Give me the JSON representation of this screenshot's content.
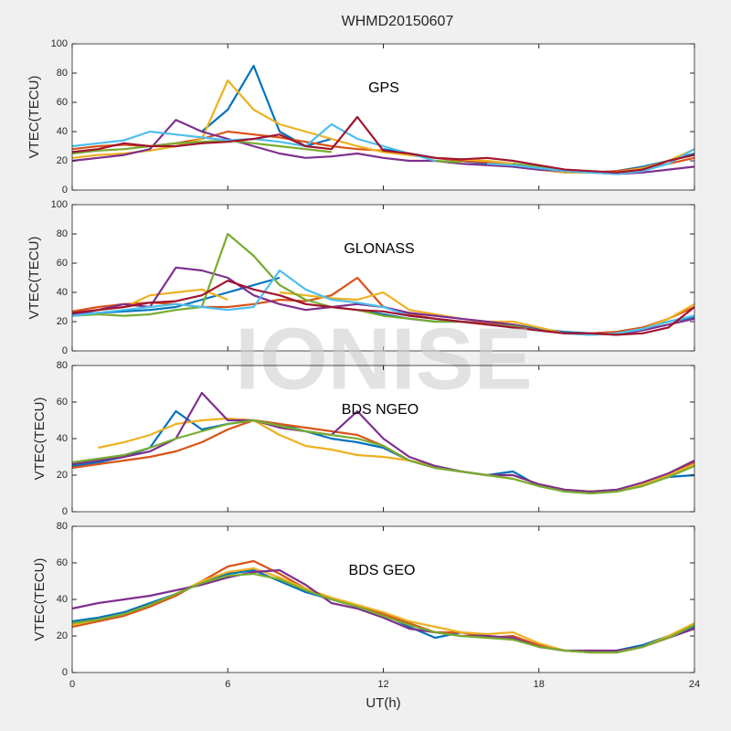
{
  "title": "WHMD20150607",
  "watermark": "IONISE",
  "chart_data": [
    {
      "type": "line",
      "annotation": "GPS",
      "ylabel": "VTEC(TECU)",
      "xlim": [
        0,
        24
      ],
      "xticks": [
        0,
        6,
        12,
        18,
        24
      ],
      "ylim": [
        0,
        100
      ],
      "yticks": [
        0,
        20,
        40,
        60,
        80,
        100
      ],
      "x": [
        0,
        1,
        2,
        3,
        4,
        5,
        6,
        7,
        8,
        9,
        10,
        11,
        12,
        13,
        14,
        15,
        16,
        17,
        18,
        19,
        20,
        21,
        22,
        23,
        24
      ],
      "series": [
        {
          "name": "s1",
          "color": "#0072BD",
          "values": [
            null,
            null,
            null,
            null,
            null,
            40,
            55,
            85,
            40,
            30,
            35,
            null,
            28,
            25,
            22,
            20,
            18,
            16,
            14,
            12,
            12,
            13,
            16,
            20,
            25
          ]
        },
        {
          "name": "s2",
          "color": "#D95319",
          "values": [
            28,
            30,
            31,
            30,
            32,
            35,
            40,
            38,
            36,
            33,
            30,
            28,
            27,
            24,
            22,
            20,
            19,
            18,
            15,
            13,
            12,
            13,
            15,
            18,
            22
          ]
        },
        {
          "name": "s3",
          "color": "#EDB120",
          "values": [
            22,
            24,
            25,
            27,
            30,
            35,
            75,
            55,
            45,
            40,
            35,
            30,
            26,
            24,
            22,
            21,
            20,
            18,
            14,
            12,
            12,
            12,
            15,
            20,
            28
          ]
        },
        {
          "name": "s4",
          "color": "#7E2F8E",
          "values": [
            20,
            22,
            24,
            28,
            48,
            40,
            35,
            30,
            25,
            22,
            23,
            25,
            22,
            20,
            20,
            18,
            17,
            16,
            14,
            13,
            12,
            11,
            12,
            14,
            16
          ]
        },
        {
          "name": "s5",
          "color": "#77AC30",
          "values": [
            25,
            27,
            28,
            30,
            32,
            33,
            34,
            32,
            30,
            28,
            26,
            null,
            null,
            null,
            20,
            19,
            null,
            18,
            16,
            14,
            null,
            null,
            null,
            null,
            null
          ]
        },
        {
          "name": "s6",
          "color": "#4DBEEE",
          "values": [
            30,
            32,
            34,
            40,
            38,
            36,
            34,
            35,
            33,
            30,
            45,
            35,
            30,
            25,
            20,
            null,
            18,
            17,
            15,
            13,
            12,
            11,
            13,
            18,
            28
          ]
        },
        {
          "name": "s7",
          "color": "#A2142F",
          "values": [
            26,
            28,
            32,
            30,
            30,
            32,
            33,
            35,
            38,
            30,
            28,
            50,
            27,
            25,
            22,
            21,
            22,
            20,
            17,
            14,
            13,
            12,
            14,
            20,
            24
          ]
        }
      ]
    },
    {
      "type": "line",
      "annotation": "GLONASS",
      "ylabel": "VTEC(TECU)",
      "xlim": [
        0,
        24
      ],
      "xticks": [
        0,
        6,
        12,
        18,
        24
      ],
      "ylim": [
        0,
        100
      ],
      "yticks": [
        0,
        20,
        40,
        60,
        80,
        100
      ],
      "x": [
        0,
        1,
        2,
        3,
        4,
        5,
        6,
        7,
        8,
        9,
        10,
        11,
        12,
        13,
        14,
        15,
        16,
        17,
        18,
        19,
        20,
        21,
        22,
        23,
        24
      ],
      "series": [
        {
          "name": "s1",
          "color": "#0072BD",
          "values": [
            25,
            26,
            27,
            28,
            30,
            35,
            40,
            45,
            50,
            null,
            30,
            28,
            25,
            22,
            20,
            20,
            19,
            18,
            15,
            13,
            12,
            13,
            16,
            20,
            23
          ]
        },
        {
          "name": "s2",
          "color": "#D95319",
          "values": [
            27,
            30,
            32,
            33,
            32,
            30,
            30,
            32,
            35,
            34,
            38,
            50,
            30,
            25,
            22,
            20,
            19,
            18,
            14,
            12,
            12,
            13,
            16,
            22,
            30
          ]
        },
        {
          "name": "s3",
          "color": "#EDB120",
          "values": [
            26,
            28,
            30,
            38,
            40,
            42,
            35,
            null,
            40,
            38,
            36,
            35,
            40,
            28,
            25,
            22,
            20,
            20,
            16,
            12,
            11,
            12,
            15,
            22,
            32
          ]
        },
        {
          "name": "s4",
          "color": "#7E2F8E",
          "values": [
            25,
            28,
            32,
            30,
            57,
            55,
            50,
            38,
            32,
            28,
            30,
            32,
            30,
            26,
            24,
            22,
            20,
            18,
            14,
            12,
            12,
            11,
            14,
            18,
            22
          ]
        },
        {
          "name": "s5",
          "color": "#77AC30",
          "values": [
            24,
            25,
            24,
            25,
            28,
            30,
            80,
            65,
            45,
            35,
            30,
            28,
            24,
            22,
            20,
            20,
            18,
            17,
            14,
            12,
            11,
            12,
            15,
            20,
            24
          ]
        },
        {
          "name": "s6",
          "color": "#4DBEEE",
          "values": [
            24,
            26,
            28,
            30,
            32,
            30,
            28,
            30,
            55,
            42,
            35,
            33,
            30,
            24,
            22,
            20,
            18,
            16,
            14,
            12,
            11,
            12,
            15,
            20,
            24
          ]
        },
        {
          "name": "s7",
          "color": "#A2142F",
          "values": [
            26,
            28,
            30,
            33,
            34,
            38,
            48,
            42,
            38,
            32,
            30,
            28,
            27,
            24,
            22,
            20,
            18,
            16,
            14,
            12,
            12,
            11,
            12,
            16,
            30
          ]
        }
      ]
    },
    {
      "type": "line",
      "annotation": "BDS NGEO",
      "ylabel": "VTEC(TECU)",
      "xlim": [
        0,
        24
      ],
      "xticks": [
        0,
        6,
        12,
        18,
        24
      ],
      "ylim": [
        0,
        80
      ],
      "yticks": [
        0,
        20,
        40,
        60,
        80
      ],
      "x": [
        0,
        1,
        2,
        3,
        4,
        5,
        6,
        7,
        8,
        9,
        10,
        11,
        12,
        13,
        14,
        15,
        16,
        17,
        18,
        19,
        20,
        21,
        22,
        23,
        24
      ],
      "series": [
        {
          "name": "s1",
          "color": "#0072BD",
          "values": [
            25,
            27,
            30,
            35,
            55,
            45,
            48,
            50,
            48,
            44,
            40,
            38,
            35,
            28,
            24,
            22,
            20,
            22,
            14,
            12,
            11,
            12,
            15,
            19,
            20
          ]
        },
        {
          "name": "s2",
          "color": "#D95319",
          "values": [
            24,
            26,
            28,
            30,
            33,
            38,
            45,
            50,
            48,
            46,
            44,
            42,
            36,
            28,
            24,
            22,
            20,
            20,
            15,
            12,
            11,
            12,
            15,
            20,
            27
          ]
        },
        {
          "name": "s3",
          "color": "#EDB120",
          "values": [
            null,
            35,
            38,
            42,
            48,
            50,
            51,
            50,
            42,
            36,
            34,
            31,
            30,
            28,
            25,
            22,
            20,
            18,
            14,
            12,
            11,
            12,
            15,
            20,
            26
          ]
        },
        {
          "name": "s4",
          "color": "#7E2F8E",
          "values": [
            26,
            28,
            30,
            33,
            40,
            65,
            50,
            50,
            46,
            44,
            42,
            55,
            40,
            30,
            25,
            22,
            20,
            20,
            15,
            12,
            11,
            12,
            16,
            21,
            28
          ]
        },
        {
          "name": "s5",
          "color": "#77AC30",
          "values": [
            27,
            29,
            31,
            35,
            40,
            44,
            48,
            50,
            47,
            44,
            42,
            40,
            36,
            28,
            24,
            22,
            20,
            18,
            14,
            11,
            10,
            11,
            14,
            19,
            25
          ]
        }
      ]
    },
    {
      "type": "line",
      "annotation": "BDS GEO",
      "ylabel": "VTEC(TECU)",
      "xlabel": "UT(h)",
      "xlim": [
        0,
        24
      ],
      "xticks": [
        0,
        6,
        12,
        18,
        24
      ],
      "ylim": [
        0,
        80
      ],
      "yticks": [
        0,
        20,
        40,
        60,
        80
      ],
      "x": [
        0,
        1,
        2,
        3,
        4,
        5,
        6,
        7,
        8,
        9,
        10,
        11,
        12,
        13,
        14,
        15,
        16,
        17,
        18,
        19,
        20,
        21,
        22,
        23,
        24
      ],
      "series": [
        {
          "name": "s1",
          "color": "#0072BD",
          "values": [
            28,
            30,
            33,
            38,
            43,
            49,
            54,
            56,
            50,
            44,
            40,
            36,
            32,
            25,
            19,
            22,
            20,
            18,
            15,
            12,
            11,
            12,
            15,
            20,
            25
          ]
        },
        {
          "name": "s2",
          "color": "#D95319",
          "values": [
            25,
            28,
            31,
            36,
            42,
            50,
            58,
            61,
            54,
            46,
            40,
            36,
            32,
            27,
            22,
            22,
            19,
            20,
            15,
            12,
            11,
            11,
            14,
            19,
            24
          ]
        },
        {
          "name": "s3",
          "color": "#EDB120",
          "values": [
            26,
            29,
            32,
            37,
            43,
            50,
            55,
            57,
            52,
            46,
            41,
            37,
            33,
            28,
            25,
            22,
            21,
            22,
            16,
            12,
            11,
            11,
            14,
            20,
            27
          ]
        },
        {
          "name": "s4",
          "color": "#7E2F8E",
          "values": [
            35,
            38,
            40,
            42,
            45,
            48,
            52,
            55,
            56,
            48,
            38,
            35,
            30,
            24,
            22,
            20,
            20,
            19,
            14,
            12,
            12,
            12,
            14,
            19,
            24
          ]
        },
        {
          "name": "s5",
          "color": "#77AC30",
          "values": [
            27,
            29,
            32,
            37,
            43,
            49,
            53,
            54,
            51,
            45,
            40,
            36,
            31,
            26,
            22,
            20,
            19,
            18,
            14,
            12,
            11,
            11,
            14,
            19,
            26
          ]
        }
      ]
    }
  ]
}
